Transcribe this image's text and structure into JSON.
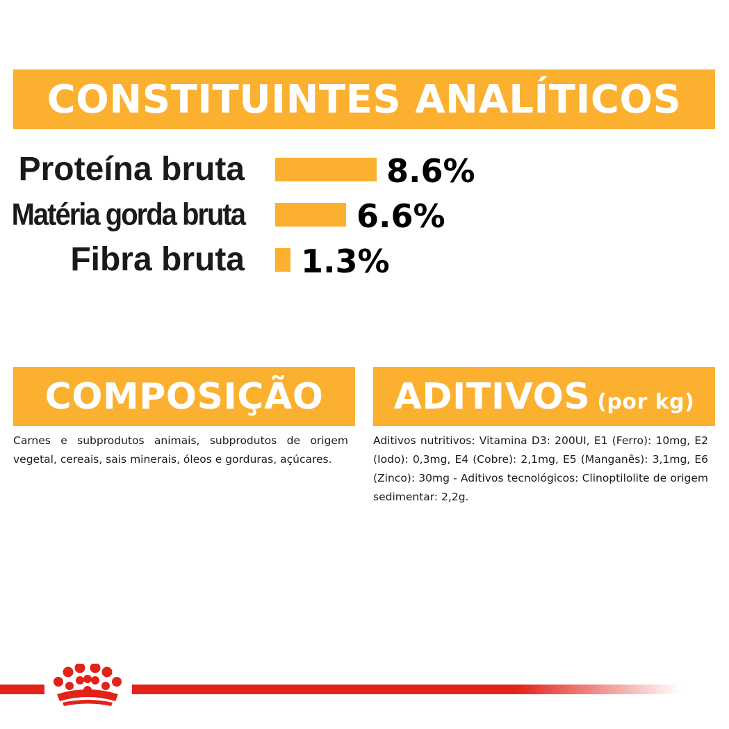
{
  "analytics": {
    "title": "CONSTITUINTES ANALÍTICOS",
    "rows": [
      {
        "label": "Proteína bruta",
        "value_text": "8.6%",
        "value": 8.6
      },
      {
        "label": "Matéria gorda bruta",
        "value_text": "6.6%",
        "value": 6.6
      },
      {
        "label": "Fibra bruta",
        "value_text": "1.3%",
        "value": 1.3
      }
    ]
  },
  "composition": {
    "title": "COMPOSIÇÃO",
    "text": "Carnes e subprodutos animais, subprodutos de origem vegetal, cereais, sais minerais, óleos e gorduras, açúcares."
  },
  "additives": {
    "title": "ADITIVOS",
    "title_suffix": "(por kg)",
    "text": "Aditivos nutritivos: Vitamina D3: 200UI, E1 (Ferro): 10mg, E2 (Iodo): 0,3mg, E4 (Cobre): 2,1mg, E5 (Manganês): 3,1mg, E6 (Zinco): 30mg - Aditivos tecnológicos: Clinoptilolite de origem sedimentar: 2,2g."
  },
  "colors": {
    "accent": "#fbb02f",
    "brand_red": "#e2231a"
  },
  "footer": {
    "logo_icon": "royal-canin-crown-icon"
  }
}
